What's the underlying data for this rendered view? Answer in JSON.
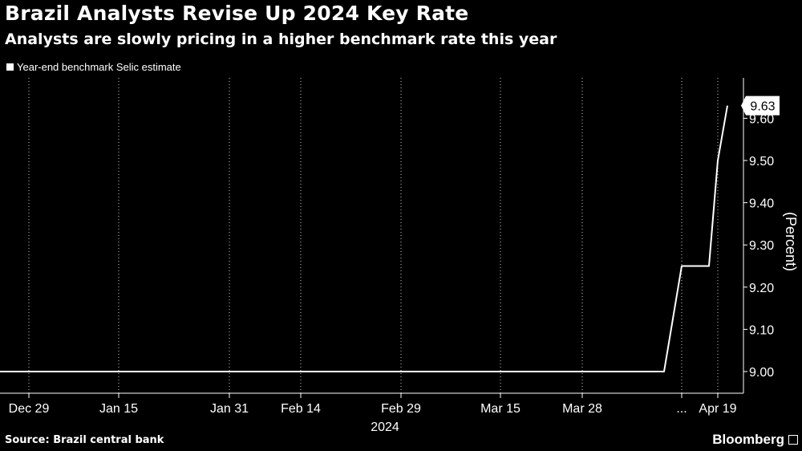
{
  "header": {
    "title": "Brazil Analysts Revise Up 2024 Key Rate",
    "subtitle": "Analysts are slowly pricing in a higher benchmark rate this year"
  },
  "legend": {
    "label": "Year-end benchmark Selic estimate"
  },
  "footer": {
    "source": "Source: Brazil central bank",
    "brand": "Bloomberg"
  },
  "colors": {
    "background": "#000000",
    "line": "#ffffff",
    "grid": "#ffffff",
    "text": "#ffffff"
  },
  "chart_data": {
    "type": "line",
    "ylabel": "(Percent)",
    "ylim": [
      9.0,
      9.7
    ],
    "y_ticks": [
      "9.00",
      "9.10",
      "9.20",
      "9.30",
      "9.40",
      "9.50",
      "9.60"
    ],
    "x_ticks": [
      "Dec 29",
      "Jan 15",
      "Jan 31",
      "Feb 14",
      "Feb 29",
      "Mar 15",
      "Mar 28",
      "...",
      "Apr 19"
    ],
    "x_sublabel": "2024",
    "grid": "vertical",
    "end_label": "9.63",
    "series": [
      {
        "name": "Year-end benchmark Selic estimate",
        "points": [
          {
            "x": "Dec 29",
            "y": 9.0
          },
          {
            "x": "Apr 5",
            "y": 9.0
          },
          {
            "x": "Apr 8",
            "y": 9.25
          },
          {
            "x": "Apr 12",
            "y": 9.25
          },
          {
            "x": "Apr 15",
            "y": 9.5
          },
          {
            "x": "Apr 17",
            "y": 9.63
          }
        ]
      }
    ]
  }
}
